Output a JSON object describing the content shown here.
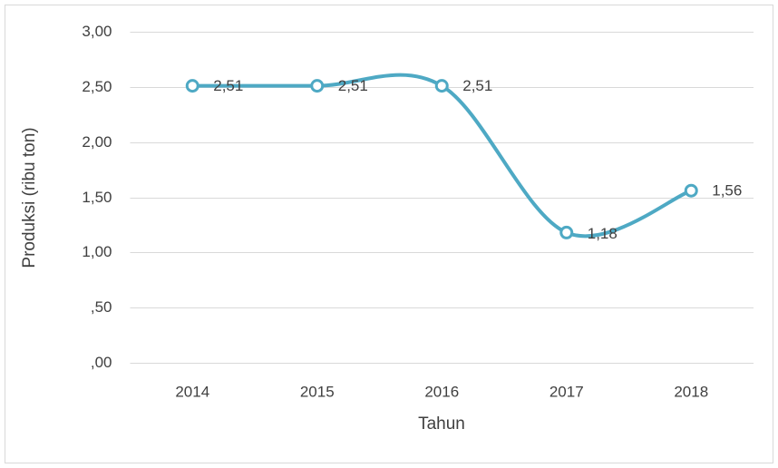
{
  "chart_data": {
    "type": "line",
    "x_label": "Tahun",
    "y_label": "Produksi (ribu ton)",
    "categories": [
      "2014",
      "2015",
      "2016",
      "2017",
      "2018"
    ],
    "values": [
      2.51,
      2.51,
      2.51,
      1.18,
      1.56
    ],
    "value_labels": [
      "2,51",
      "2,51",
      "2,51",
      "1,18",
      "1,56"
    ],
    "color": "#4ea9c4",
    "smooth": true,
    "ylim": [
      0,
      3
    ],
    "yticks": [
      {
        "value": 0,
        "label": ",00"
      },
      {
        "value": 0.5,
        "label": ",50"
      },
      {
        "value": 1,
        "label": "1,00"
      },
      {
        "value": 1.5,
        "label": "1,50"
      },
      {
        "value": 2,
        "label": "2,00"
      },
      {
        "value": 2.5,
        "label": "2,50"
      },
      {
        "value": 3,
        "label": "3,00"
      }
    ],
    "grid": true
  }
}
